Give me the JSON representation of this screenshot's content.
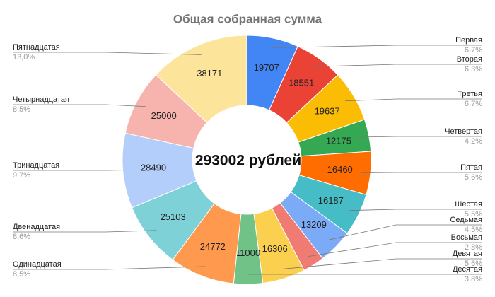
{
  "chart_data": {
    "type": "donut",
    "title": "Общая собранная сумма",
    "center_label": "293002 рублей",
    "categories": [
      "Первая",
      "Вторая",
      "Третья",
      "Четвертая",
      "Пятая",
      "Шестая",
      "Седьмая",
      "Восьмая",
      "Девятая",
      "Десятая",
      "Одинадцатая",
      "Двенадцатая",
      "Тринадцатая",
      "Четырнадцатая",
      "Пятнадцатая"
    ],
    "values": [
      19707,
      18551,
      19637,
      12175,
      16460,
      16187,
      13209,
      8234,
      16306,
      11000,
      24772,
      25103,
      28490,
      25000,
      38171
    ],
    "percent_labels": [
      "6,7%",
      "6,3%",
      "6,7%",
      "4,2%",
      "5,6%",
      "5,5%",
      "4,5%",
      "2,8%",
      "5,6%",
      "3,8%",
      "8,5%",
      "8,6%",
      "9,7%",
      "8,5%",
      "13,0%"
    ],
    "colors": [
      "#4285f4",
      "#ea4335",
      "#fbbc04",
      "#34a853",
      "#ff6d01",
      "#46bdc6",
      "#7baaf7",
      "#f07b72",
      "#fcd04f",
      "#71c287",
      "#ff994d",
      "#7ed1d7",
      "#b3cefb",
      "#f7b4ae",
      "#fde49b"
    ]
  }
}
